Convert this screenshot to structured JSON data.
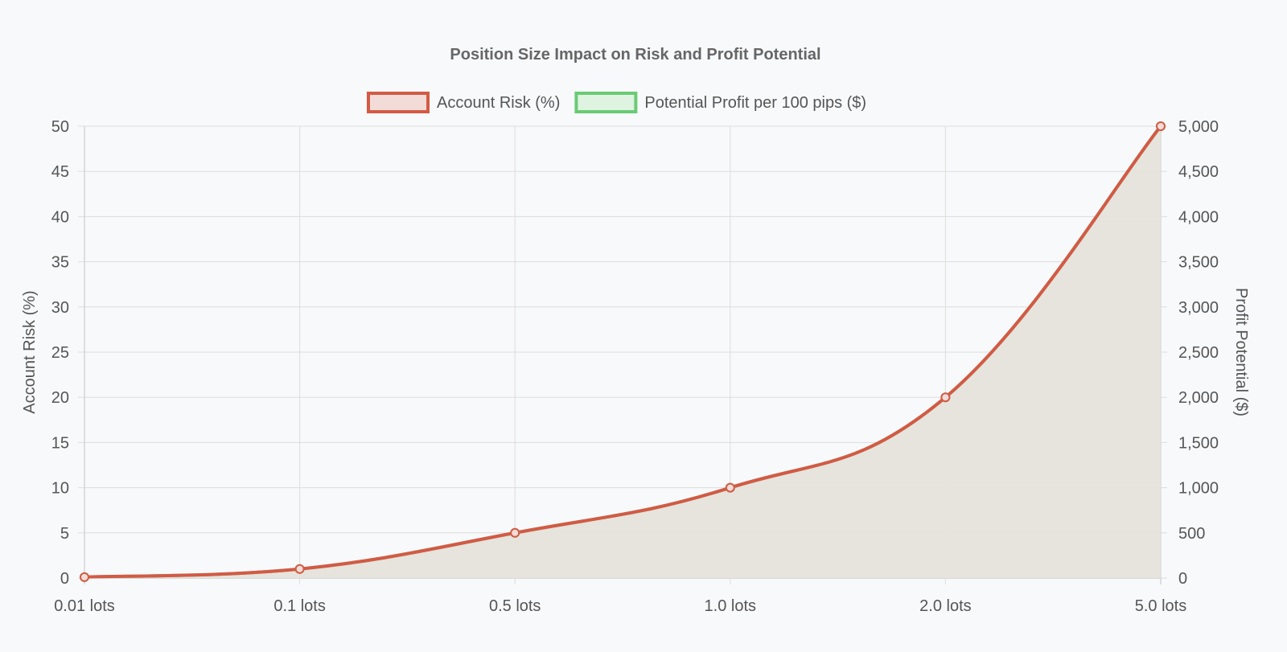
{
  "chart_data": {
    "type": "line",
    "title": "Position Size Impact on Risk and Profit Potential",
    "categories": [
      "0.01 lots",
      "0.1 lots",
      "0.5 lots",
      "1.0 lots",
      "2.0 lots",
      "5.0 lots"
    ],
    "series": [
      {
        "name": "Account Risk (%)",
        "axis": "left",
        "values": [
          0.1,
          1,
          5,
          10,
          20,
          50
        ],
        "color": "#d35a45",
        "fill": "#e5e3da",
        "legend_fill": "#f3dcd8"
      },
      {
        "name": "Potential Profit per 100 pips ($)",
        "axis": "right",
        "values": [
          10,
          100,
          500,
          1000,
          2000,
          5000
        ],
        "color": "#6acb74",
        "fill": "#e5e3da",
        "legend_fill": "#dff3e1"
      }
    ],
    "y_left": {
      "label": "Account Risk (%)",
      "min": 0,
      "max": 50,
      "ticks": [
        "0",
        "5",
        "10",
        "15",
        "20",
        "25",
        "30",
        "35",
        "40",
        "45",
        "50"
      ]
    },
    "y_right": {
      "label": "Profit Potential ($)",
      "min": 0,
      "max": 5000,
      "ticks": [
        "0",
        "500",
        "1,000",
        "1,500",
        "2,000",
        "2,500",
        "3,000",
        "3,500",
        "4,000",
        "4,500",
        "5,000"
      ]
    },
    "grid": true,
    "legend_position": "top"
  }
}
